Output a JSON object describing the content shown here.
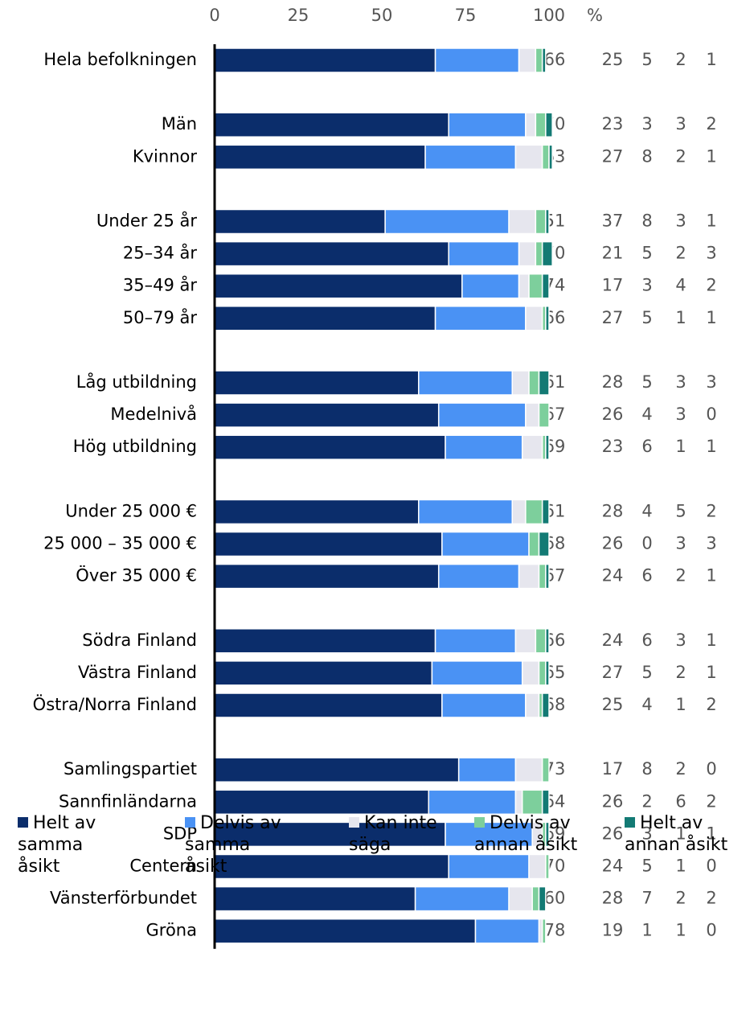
{
  "chart_data": {
    "type": "stacked-bar-horizontal",
    "categories": [
      "Hela befolkningen",
      null,
      "Män",
      "Kvinnor",
      null,
      "Under 25 år",
      "25–34 år",
      "35–49 år",
      "50–79 år",
      null,
      "Låg utbildning",
      "Medelnivå",
      "Hög utbildning",
      null,
      "Under 25 000 €",
      "25 000 – 35 000 €",
      "Över 35 000 €",
      null,
      "Södra Finland",
      "Västra Finland",
      "Östra/Norra Finland",
      null,
      "Samlingspartiet",
      "Sannfinländarna",
      "SDP",
      "Centern",
      "Vänsterförbundet",
      "Gröna"
    ],
    "series": [
      {
        "name": "Helt av samma åsikt",
        "color": "#0b2d6b",
        "values": [
          66,
          null,
          70,
          63,
          null,
          51,
          70,
          74,
          66,
          null,
          61,
          67,
          69,
          null,
          61,
          68,
          67,
          null,
          66,
          65,
          68,
          null,
          73,
          64,
          69,
          70,
          60,
          78
        ]
      },
      {
        "name": "Delvis av samma åsikt",
        "color": "#4a92f4",
        "values": [
          25,
          null,
          23,
          27,
          null,
          37,
          21,
          17,
          27,
          null,
          28,
          26,
          23,
          null,
          28,
          26,
          24,
          null,
          24,
          27,
          25,
          null,
          17,
          26,
          26,
          24,
          28,
          19
        ]
      },
      {
        "name": "Kan inte säga",
        "color": "#e6e6ee",
        "values": [
          5,
          null,
          3,
          8,
          null,
          8,
          5,
          3,
          5,
          null,
          5,
          4,
          6,
          null,
          4,
          0,
          6,
          null,
          6,
          5,
          4,
          null,
          8,
          2,
          3,
          5,
          7,
          1
        ]
      },
      {
        "name": "Delvis av annan åsikt",
        "color": "#7dcf9c",
        "values": [
          2,
          null,
          3,
          2,
          null,
          3,
          2,
          4,
          1,
          null,
          3,
          3,
          1,
          null,
          5,
          3,
          2,
          null,
          3,
          2,
          1,
          null,
          2,
          6,
          1,
          1,
          2,
          1
        ]
      },
      {
        "name": "Helt av annan åsikt",
        "color": "#137a74",
        "values": [
          1,
          null,
          2,
          1,
          null,
          1,
          3,
          2,
          1,
          null,
          3,
          0,
          1,
          null,
          2,
          3,
          1,
          null,
          1,
          1,
          2,
          null,
          0,
          2,
          1,
          0,
          2,
          0
        ]
      }
    ],
    "xlim": [
      0,
      100
    ],
    "xticks": [
      0,
      25,
      50,
      75,
      100
    ],
    "unit": "%"
  }
}
